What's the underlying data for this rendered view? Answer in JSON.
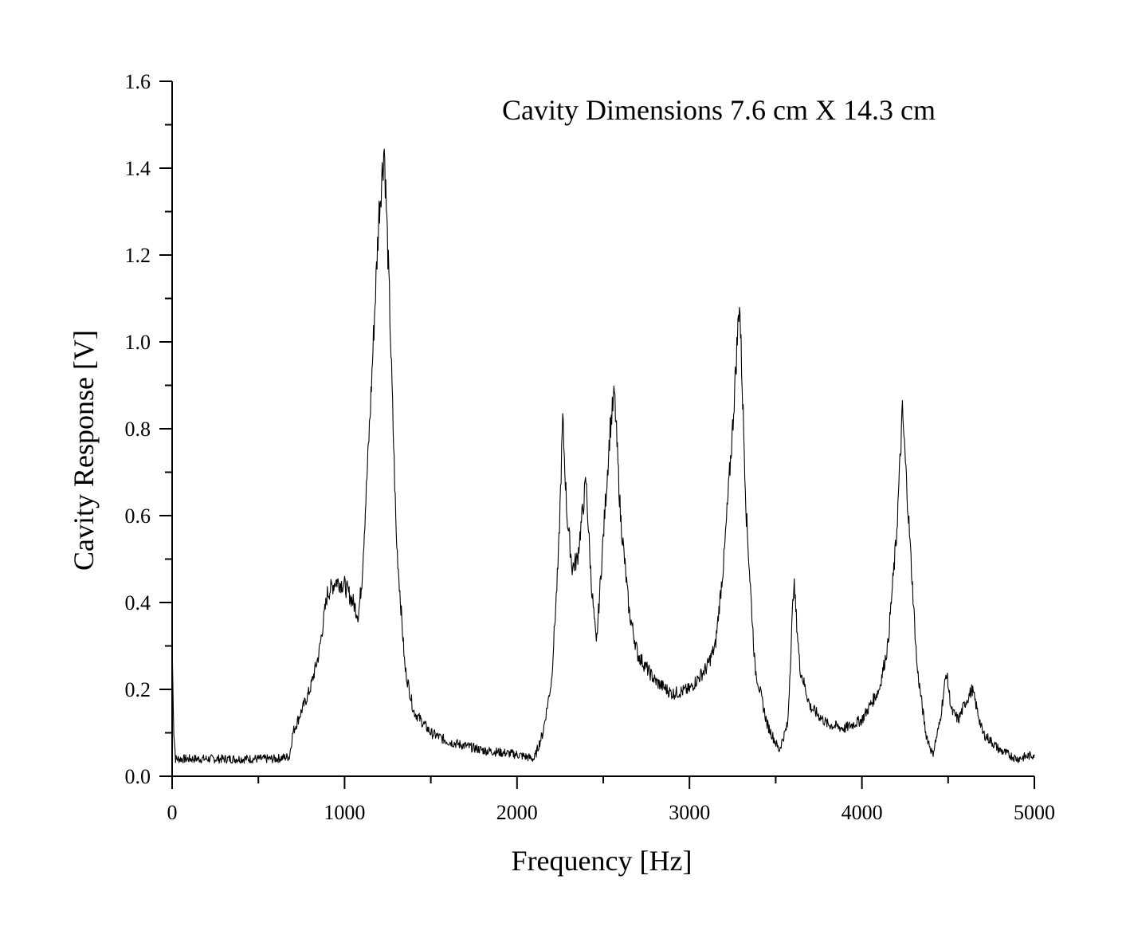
{
  "chart_data": {
    "type": "line",
    "title": "",
    "annotation": "Cavity Dimensions 7.6 cm X 14.3 cm",
    "xlabel": "Frequency [Hz]",
    "ylabel": "Cavity Response [V]",
    "xlim": [
      0,
      5000
    ],
    "ylim": [
      0,
      1.6
    ],
    "x_ticks": [
      "0",
      "1000",
      "2000",
      "3000",
      "4000",
      "5000"
    ],
    "y_ticks": [
      "0.0",
      "0.2",
      "0.4",
      "0.6",
      "0.8",
      "1.0",
      "1.2",
      "1.4",
      "1.6"
    ],
    "grid": false,
    "legend": "none",
    "line_color": "#000000",
    "series": [
      {
        "x": [
          0,
          10,
          20,
          40,
          100,
          200,
          300,
          400,
          500,
          600,
          680,
          700,
          750,
          800,
          850,
          900,
          950,
          1000,
          1050,
          1080,
          1100,
          1150,
          1200,
          1230,
          1260,
          1300,
          1350,
          1400,
          1500,
          1600,
          1800,
          2000,
          2100,
          2150,
          2200,
          2240,
          2265,
          2290,
          2320,
          2350,
          2400,
          2430,
          2460,
          2500,
          2540,
          2565,
          2600,
          2650,
          2700,
          2800,
          2900,
          3000,
          3100,
          3150,
          3200,
          3250,
          3290,
          3330,
          3380,
          3450,
          3520,
          3570,
          3605,
          3640,
          3700,
          3800,
          3900,
          4000,
          4100,
          4150,
          4200,
          4235,
          4270,
          4320,
          4370,
          4410,
          4450,
          4490,
          4520,
          4560,
          4600,
          4640,
          4670,
          4700,
          4800,
          4900,
          5000
        ],
        "y": [
          0.3,
          0.1,
          0.04,
          0.04,
          0.04,
          0.04,
          0.04,
          0.04,
          0.04,
          0.04,
          0.045,
          0.1,
          0.15,
          0.2,
          0.28,
          0.42,
          0.45,
          0.44,
          0.4,
          0.37,
          0.45,
          0.85,
          1.3,
          1.45,
          1.1,
          0.55,
          0.25,
          0.15,
          0.1,
          0.08,
          0.06,
          0.05,
          0.04,
          0.1,
          0.22,
          0.5,
          0.82,
          0.6,
          0.48,
          0.5,
          0.68,
          0.45,
          0.3,
          0.55,
          0.8,
          0.88,
          0.6,
          0.38,
          0.28,
          0.22,
          0.19,
          0.2,
          0.25,
          0.3,
          0.5,
          0.8,
          1.1,
          0.6,
          0.25,
          0.12,
          0.06,
          0.12,
          0.45,
          0.25,
          0.16,
          0.12,
          0.11,
          0.13,
          0.2,
          0.3,
          0.55,
          0.84,
          0.6,
          0.25,
          0.1,
          0.05,
          0.12,
          0.24,
          0.15,
          0.13,
          0.17,
          0.2,
          0.15,
          0.1,
          0.06,
          0.04,
          0.05
        ]
      }
    ]
  }
}
